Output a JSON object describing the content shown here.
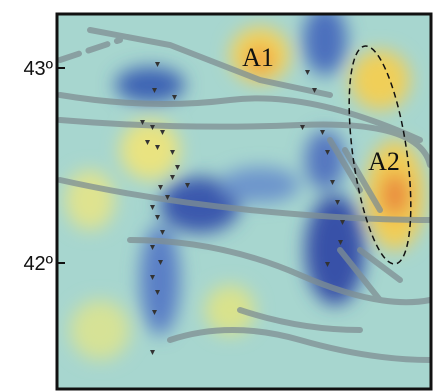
{
  "map": {
    "latitude_labels": [
      "43º",
      "42º"
    ],
    "anomaly_labels": [
      "A1",
      "A2"
    ]
  }
}
